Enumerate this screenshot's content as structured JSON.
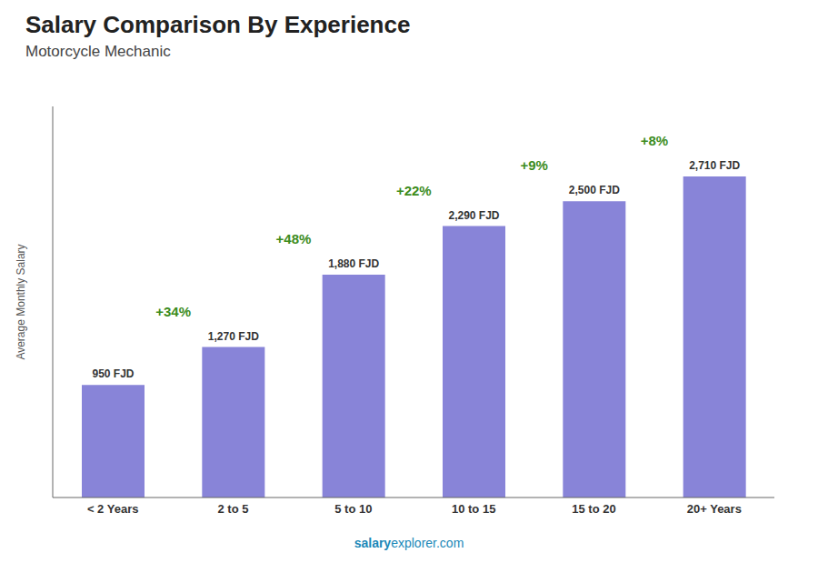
{
  "chart_data": {
    "type": "bar",
    "title": "Salary Comparison By Experience",
    "subtitle": "Motorcycle Mechanic",
    "ylabel": "Average Monthly Salary",
    "categories": [
      "< 2 Years",
      "2 to 5",
      "5 to 10",
      "10 to 15",
      "15 to 20",
      "20+ Years"
    ],
    "values": [
      950,
      1270,
      1880,
      2290,
      2500,
      2710
    ],
    "value_labels": [
      "950 FJD",
      "1,270 FJD",
      "1,880 FJD",
      "2,290 FJD",
      "2,500 FJD",
      "2,710 FJD"
    ],
    "data_labels": true,
    "annotations": [
      "+34%",
      "+48%",
      "+22%",
      "+9%",
      "+8%"
    ],
    "footer": [
      "salary",
      "explorer.com"
    ],
    "ylim": [
      0,
      3300
    ],
    "tick_labels": "x"
  }
}
